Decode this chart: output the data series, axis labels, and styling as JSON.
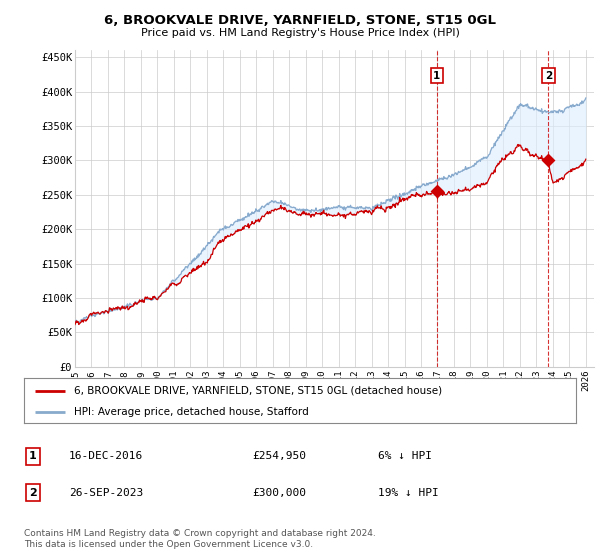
{
  "title": "6, BROOKVALE DRIVE, YARNFIELD, STONE, ST15 0GL",
  "subtitle": "Price paid vs. HM Land Registry's House Price Index (HPI)",
  "ylabel_ticks": [
    "£0",
    "£50K",
    "£100K",
    "£150K",
    "£200K",
    "£250K",
    "£300K",
    "£350K",
    "£400K",
    "£450K"
  ],
  "ytick_values": [
    0,
    50000,
    100000,
    150000,
    200000,
    250000,
    300000,
    350000,
    400000,
    450000
  ],
  "ylim": [
    0,
    460000
  ],
  "xlim_start": 1995.0,
  "xlim_end": 2026.5,
  "ann1_x": 2016.96,
  "ann1_y": 254950,
  "ann2_x": 2023.73,
  "ann2_y": 300000,
  "legend_line1": "6, BROOKVALE DRIVE, YARNFIELD, STONE, ST15 0GL (detached house)",
  "legend_line2": "HPI: Average price, detached house, Stafford",
  "footer": "Contains HM Land Registry data © Crown copyright and database right 2024.\nThis data is licensed under the Open Government Licence v3.0.",
  "table_rows": [
    {
      "num": "1",
      "date": "16-DEC-2016",
      "price": "£254,950",
      "pct": "6% ↓ HPI"
    },
    {
      "num": "2",
      "date": "26-SEP-2023",
      "price": "£300,000",
      "pct": "19% ↓ HPI"
    }
  ],
  "line_color_red": "#cc0000",
  "line_color_blue": "#88aacc",
  "fill_color_blue": "#ddeeff",
  "grid_color": "#cccccc",
  "bg_color": "#ffffff",
  "dashed_color": "#cc0000"
}
